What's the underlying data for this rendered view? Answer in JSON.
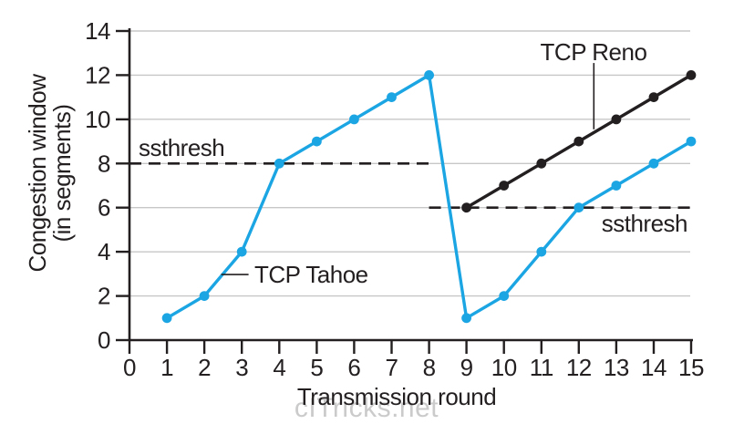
{
  "figure": {
    "watermark": "cITricks.net",
    "background": "#FFFFFF"
  },
  "chart_data": {
    "type": "line",
    "title": "",
    "xlabel": "Transmission round",
    "ylabel": "Congestion window (in segments)",
    "ylabel_lines": [
      "Congestion window",
      "(in segments)"
    ],
    "xlim": [
      0,
      15
    ],
    "ylim": [
      0,
      14
    ],
    "x_ticks": [
      0,
      1,
      2,
      3,
      4,
      5,
      6,
      7,
      8,
      9,
      10,
      11,
      12,
      13,
      14,
      15
    ],
    "y_ticks": [
      0,
      2,
      4,
      6,
      8,
      10,
      12,
      14
    ],
    "grid": "horizontal",
    "grid_values": [
      2,
      4,
      6,
      8,
      10,
      12,
      14
    ],
    "legend_position": "none",
    "series": [
      {
        "name": "TCP Tahoe",
        "color": "#1BA5E3",
        "marker": "circle",
        "x": [
          1,
          2,
          3,
          4,
          5,
          6,
          7,
          8,
          9,
          10,
          11,
          12,
          13,
          14,
          15
        ],
        "y": [
          1,
          2,
          4,
          8,
          9,
          10,
          11,
          12,
          1,
          2,
          4,
          6,
          7,
          8,
          9
        ]
      },
      {
        "name": "TCP Reno",
        "color": "#231F20",
        "marker": "circle",
        "x": [
          9,
          10,
          11,
          12,
          13,
          14,
          15
        ],
        "y": [
          6,
          7,
          8,
          9,
          10,
          11,
          12
        ]
      }
    ],
    "threshold_lines": [
      {
        "label": "ssthresh",
        "y": 8,
        "x_start": 0,
        "x_end": 8,
        "style": "dashed",
        "label_side": "above-left"
      },
      {
        "label": "ssthresh",
        "y": 6,
        "x_start": 8,
        "x_end": 15,
        "style": "dashed",
        "label_side": "below-right"
      }
    ],
    "annotations": [
      {
        "text": "TCP Tahoe",
        "target_series": "TCP Tahoe",
        "leader": [
          [
            2.45,
            2.97
          ],
          [
            3.18,
            2.97
          ]
        ]
      },
      {
        "text": "TCP Reno",
        "target_series": "TCP Reno",
        "leader": [
          [
            12.4,
            12.55
          ],
          [
            12.4,
            9.55
          ]
        ]
      }
    ]
  },
  "colors": {
    "tahoe_blue": "#1BA5E3",
    "reno_black": "#231F20",
    "gridline_gray": "#C7C7C7",
    "axis_black": "#231F20",
    "text_black": "#231F20",
    "watermark_gray": "#CBCBCB",
    "background": "#FFFFFF"
  }
}
